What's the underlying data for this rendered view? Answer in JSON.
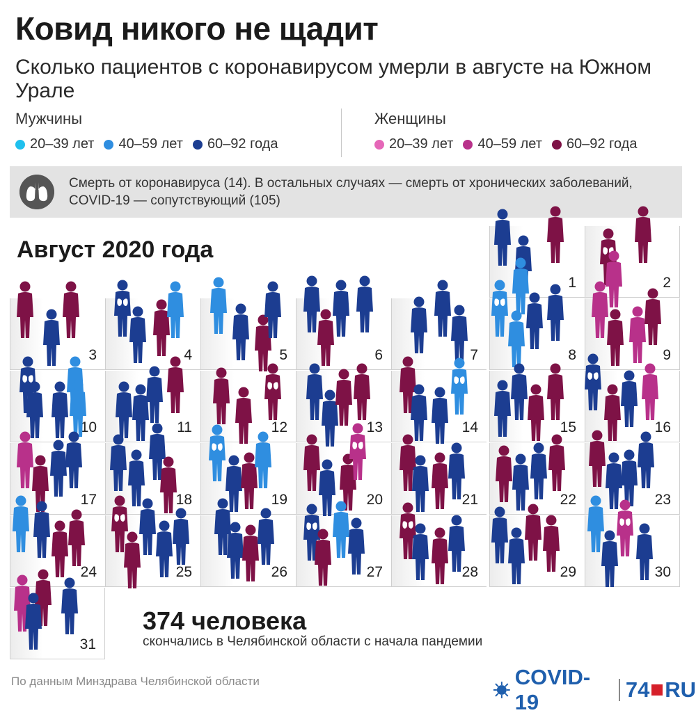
{
  "header": {
    "title": "Ковид никого не щадит",
    "subtitle": "Сколько пациентов с коронавирусом умерли в августе на Южном Урале"
  },
  "legend": {
    "men": {
      "title": "Мужчины",
      "items": [
        {
          "label": "20–39 лет",
          "color": "#1fc0ee"
        },
        {
          "label": "40–59 лет",
          "color": "#2f8ee0"
        },
        {
          "label": "60–92 года",
          "color": "#1c3d91"
        }
      ]
    },
    "women": {
      "title": "Женщины",
      "items": [
        {
          "label": "20–39 лет",
          "color": "#e567b8"
        },
        {
          "label": "40–59 лет",
          "color": "#b8318a"
        },
        {
          "label": "60–92 года",
          "color": "#7e1246"
        }
      ]
    }
  },
  "note": {
    "icon": "lungs-icon",
    "text": "Смерть от коронавируса (14). В остальных случаях — смерть от хронических заболеваний, COVID-19 — сопутствующий (105)"
  },
  "month_title": "Август 2020 года",
  "days": [
    "1",
    "2",
    "3",
    "4",
    "5",
    "6",
    "7",
    "8",
    "9",
    "10",
    "11",
    "12",
    "13",
    "14",
    "15",
    "16",
    "17",
    "18",
    "19",
    "20",
    "21",
    "22",
    "23",
    "24",
    "25",
    "26",
    "27",
    "28",
    "29",
    "30",
    "31"
  ],
  "totals": {
    "number": "374 человека",
    "text": "скончались в Челябинской области с начала пандемии"
  },
  "source": "По данным Минздрава Челябинской области",
  "brand": {
    "covid": "COVID-19",
    "n74": "74",
    "ru": "RU"
  }
}
